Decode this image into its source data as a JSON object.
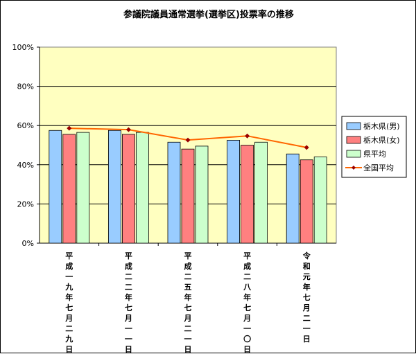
{
  "chart_data": {
    "type": "bar",
    "title": "参議院議員通常選挙(選挙区)投票率の推移",
    "categories": [
      "平成一九年七月二九日",
      "平成二二年七月一一日",
      "平成二五年七月二一日",
      "平成二八年七月一〇日",
      "令和元年七月二一日"
    ],
    "series": [
      {
        "name": "栃木県(男)",
        "values": [
          57.5,
          57.5,
          51.5,
          52.5,
          45.5
        ],
        "color": "#99ccff"
      },
      {
        "name": "栃木県(女)",
        "values": [
          55.5,
          55.5,
          48.0,
          50.0,
          42.5
        ],
        "color": "#ff8080"
      },
      {
        "name": "県平均",
        "values": [
          56.5,
          56.5,
          49.5,
          51.5,
          44.0
        ],
        "color": "#ccffcc"
      }
    ],
    "line_series": {
      "name": "全国平均",
      "values": [
        58.6,
        57.9,
        52.6,
        54.7,
        48.8
      ],
      "color": "#ff6600"
    },
    "yticks": [
      "0%",
      "20%",
      "40%",
      "60%",
      "80%",
      "100%"
    ],
    "ylim": [
      0,
      100
    ],
    "plot_bg": "#ffffc0",
    "grid": true,
    "legend_position": "right"
  }
}
